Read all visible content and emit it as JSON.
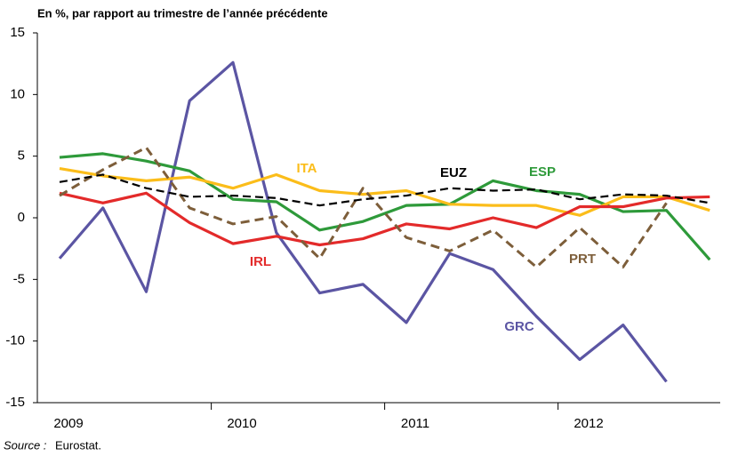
{
  "chart_data": {
    "type": "line",
    "title": "En %, par rapport au trimestre de l’année précédente",
    "source_label": "Source :",
    "source": "Eurostat.",
    "categories": [
      "2009",
      null,
      null,
      null,
      "2010",
      null,
      null,
      null,
      "2011",
      null,
      null,
      null,
      "2012",
      null,
      null,
      null
    ],
    "ylim": [
      -15,
      15
    ],
    "yticks": [
      15,
      10,
      5,
      0,
      -5,
      -10,
      -15
    ],
    "series": [
      {
        "name": "GRC",
        "color": "#5b55a3",
        "dash": false,
        "values": [
          -3.3,
          0.8,
          -6.0,
          9.5,
          12.6,
          -1.2,
          -6.1,
          -5.4,
          -8.5,
          -2.9,
          -4.2,
          -8.0,
          -11.5,
          -8.7,
          -13.3,
          null
        ]
      },
      {
        "name": "ESP",
        "color": "#2e9a3a",
        "dash": false,
        "values": [
          4.9,
          5.2,
          4.6,
          3.8,
          1.5,
          1.3,
          -1.0,
          -0.3,
          1.0,
          1.1,
          3.0,
          2.2,
          1.9,
          0.5,
          0.6,
          -3.4
        ]
      },
      {
        "name": "ITA",
        "color": "#fbbd1a",
        "dash": false,
        "values": [
          4.0,
          3.4,
          3.0,
          3.3,
          2.4,
          3.5,
          2.2,
          1.9,
          2.2,
          1.1,
          1.0,
          1.0,
          0.2,
          1.7,
          1.7,
          0.6
        ]
      },
      {
        "name": "IRL",
        "color": "#e32a2a",
        "dash": false,
        "values": [
          2.0,
          1.2,
          2.0,
          -0.4,
          -2.1,
          -1.5,
          -2.2,
          -1.7,
          -0.5,
          -0.9,
          0.0,
          -0.8,
          0.9,
          0.9,
          1.6,
          1.7
        ]
      },
      {
        "name": "PRT",
        "color": "#7d5e3a",
        "dash": true,
        "values": [
          1.8,
          3.9,
          5.7,
          0.8,
          -0.5,
          0.1,
          -3.3,
          2.4,
          -1.6,
          -2.7,
          -1.0,
          -4.0,
          -0.8,
          -4.0,
          1.2,
          null
        ]
      },
      {
        "name": "EUZ",
        "color": "#000000",
        "dash": true,
        "values": [
          2.9,
          3.5,
          2.4,
          1.7,
          1.8,
          1.6,
          1.0,
          1.5,
          1.8,
          2.4,
          2.2,
          2.3,
          1.5,
          1.9,
          1.8,
          1.2
        ]
      }
    ]
  }
}
